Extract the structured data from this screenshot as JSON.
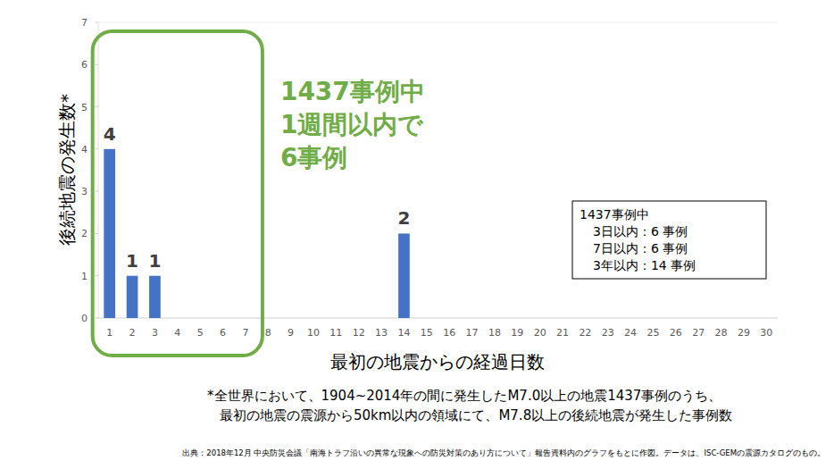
{
  "chart_data": {
    "type": "bar",
    "x_label": "最初の地震からの経過日数",
    "y_label": "後続地震の発生数*",
    "categories": [
      1,
      2,
      3,
      4,
      5,
      6,
      7,
      8,
      9,
      10,
      11,
      12,
      13,
      14,
      15,
      16,
      17,
      18,
      19,
      20,
      21,
      22,
      23,
      24,
      25,
      26,
      27,
      28,
      29,
      30
    ],
    "values": [
      4,
      1,
      1,
      0,
      0,
      0,
      0,
      0,
      0,
      0,
      0,
      0,
      0,
      2,
      0,
      0,
      0,
      0,
      0,
      0,
      0,
      0,
      0,
      0,
      0,
      0,
      0,
      0,
      0,
      0
    ],
    "value_labels": [
      "4",
      "1",
      "1",
      null,
      null,
      null,
      null,
      null,
      null,
      null,
      null,
      null,
      null,
      "2",
      null,
      null,
      null,
      null,
      null,
      null,
      null,
      null,
      null,
      null,
      null,
      null,
      null,
      null,
      null,
      null
    ],
    "color": "#4472c4",
    "ylim": [
      0,
      7
    ],
    "yticks": [
      0,
      1,
      2,
      3,
      4,
      5,
      6,
      7
    ],
    "grid": false,
    "data_labels": true,
    "annotations": [
      {
        "text_lines": [
          "1437事例中",
          "1週間以内で",
          "6事例"
        ],
        "x_range": [
          1,
          7
        ],
        "color": "#70ad47"
      }
    ],
    "info_box": {
      "lines": [
        "1437事例中",
        "3日以内：6 事例",
        "7日以内：6 事例",
        "3年以内：14 事例"
      ]
    },
    "footnote": [
      "*全世界において、1904~2014年の間に発生したM7.0以上の地震1437事例のうち、",
      "最初の地震の震源から50km以内の領域にて、M7.8以上の後続地震が発生した事例数"
    ],
    "source": "出典：2018年12月 中央防災会議「南海トラフ沿いの異常な現象への防災対策のあり方について」報告資料内のグラフをもとに作図。データは、ISC-GEMの震源カタログのもの。"
  }
}
